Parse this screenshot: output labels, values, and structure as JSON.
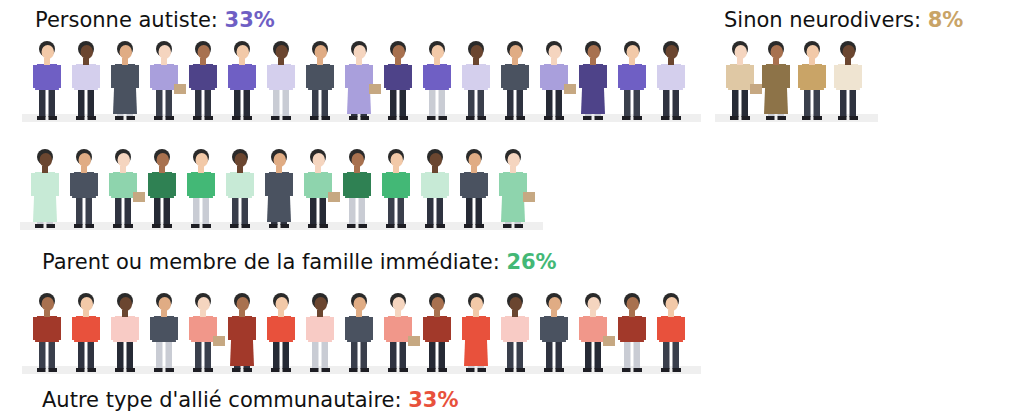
{
  "chart_data": {
    "type": "pictogram",
    "categories": [
      "Personne autiste:",
      "Sinon neurodivers:",
      "Parent ou membre de la famille immédiate:",
      "Autre type d'allié communautaire:"
    ],
    "values": [
      33,
      8,
      26,
      33
    ],
    "value_labels": [
      "33%",
      "8%",
      "26%",
      "33%"
    ],
    "colors": [
      "#6f5fc4",
      "#c9a467",
      "#43b876",
      "#e8513c"
    ],
    "data_labels": true,
    "tick_labels": false
  }
}
